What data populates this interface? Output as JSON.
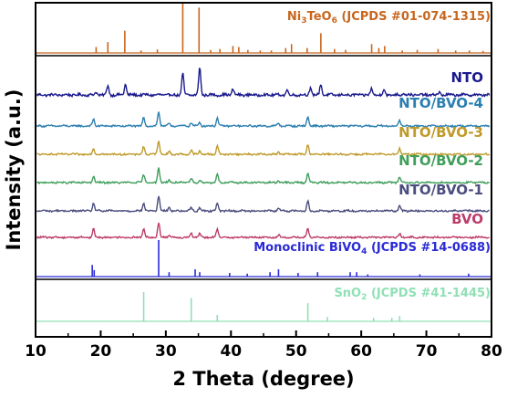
{
  "chart_data": {
    "type": "line",
    "xlabel": "2 Theta (degree)",
    "ylabel": "Intensity (a.u.)",
    "xlim": [
      10,
      80
    ],
    "xticks": [
      "10",
      "20",
      "30",
      "40",
      "50",
      "60",
      "70",
      "80"
    ],
    "grid": false,
    "reference_panels": [
      {
        "name": "Ni3TeO6 (JCPDS #01-074-1315)",
        "label_parts": [
          "Ni",
          "3",
          "TeO",
          "6",
          " (JCPDS #01-074-1315)"
        ],
        "color": "#c8661e",
        "sticks": [
          [
            19.3,
            0.12
          ],
          [
            21.1,
            0.22
          ],
          [
            23.7,
            0.45
          ],
          [
            26.2,
            0.05
          ],
          [
            28.7,
            0.07
          ],
          [
            32.6,
            1.0
          ],
          [
            35.1,
            0.92
          ],
          [
            36.9,
            0.06
          ],
          [
            38.3,
            0.08
          ],
          [
            40.3,
            0.14
          ],
          [
            41.2,
            0.12
          ],
          [
            42.6,
            0.06
          ],
          [
            44.5,
            0.05
          ],
          [
            46.2,
            0.05
          ],
          [
            48.4,
            0.1
          ],
          [
            49.3,
            0.18
          ],
          [
            51.7,
            0.1
          ],
          [
            53.8,
            0.4
          ],
          [
            55.9,
            0.08
          ],
          [
            57.6,
            0.06
          ],
          [
            61.6,
            0.18
          ],
          [
            62.7,
            0.1
          ],
          [
            63.6,
            0.14
          ],
          [
            66.3,
            0.05
          ],
          [
            68.6,
            0.06
          ],
          [
            71.8,
            0.08
          ],
          [
            74.5,
            0.05
          ],
          [
            76.6,
            0.05
          ],
          [
            78.7,
            0.04
          ]
        ]
      },
      {
        "name": "Monoclinic BiVO4 (JCPDS #14-0688)",
        "label_parts": [
          "Monoclinic BiVO",
          "4",
          " (JCPDS #14-0688)"
        ],
        "color": "#2a2ad6",
        "sticks": [
          [
            18.7,
            0.32
          ],
          [
            19.0,
            0.18
          ],
          [
            28.9,
            1.0
          ],
          [
            30.5,
            0.12
          ],
          [
            34.5,
            0.2
          ],
          [
            35.2,
            0.12
          ],
          [
            39.8,
            0.1
          ],
          [
            42.5,
            0.08
          ],
          [
            46.0,
            0.12
          ],
          [
            47.3,
            0.2
          ],
          [
            50.3,
            0.1
          ],
          [
            53.3,
            0.12
          ],
          [
            58.3,
            0.12
          ],
          [
            59.3,
            0.12
          ],
          [
            61.0,
            0.06
          ],
          [
            69.0,
            0.06
          ],
          [
            76.5,
            0.08
          ]
        ]
      },
      {
        "name": "SnO2 (JCPDS #41-1445)",
        "label_parts": [
          "SnO",
          "2",
          " (JCPDS #41-1445)"
        ],
        "color": "#8fe0b5",
        "sticks": [
          [
            26.6,
            1.0
          ],
          [
            33.9,
            0.8
          ],
          [
            37.9,
            0.22
          ],
          [
            51.8,
            0.62
          ],
          [
            54.8,
            0.15
          ],
          [
            61.9,
            0.12
          ],
          [
            64.7,
            0.12
          ],
          [
            65.9,
            0.18
          ]
        ]
      }
    ],
    "series": [
      {
        "name": "NTO",
        "color": "#1a1a8e",
        "noise": 0.035,
        "peaks": [
          [
            19.3,
            0.08
          ],
          [
            21.1,
            0.28
          ],
          [
            23.8,
            0.32
          ],
          [
            32.6,
            0.62
          ],
          [
            35.2,
            0.82
          ],
          [
            40.3,
            0.18
          ],
          [
            48.6,
            0.15
          ],
          [
            52.2,
            0.2
          ],
          [
            53.8,
            0.32
          ],
          [
            61.6,
            0.18
          ],
          [
            63.5,
            0.16
          ],
          [
            66.5,
            0.07
          ],
          [
            72.0,
            0.08
          ]
        ]
      },
      {
        "name": "NTO/BVO-4",
        "color": "#2b7fb0",
        "noise": 0.03,
        "peaks": [
          [
            18.9,
            0.25
          ],
          [
            26.6,
            0.3
          ],
          [
            28.9,
            0.52
          ],
          [
            30.5,
            0.1
          ],
          [
            33.9,
            0.12
          ],
          [
            35.2,
            0.14
          ],
          [
            37.9,
            0.3
          ],
          [
            47.3,
            0.1
          ],
          [
            51.8,
            0.35
          ],
          [
            65.9,
            0.22
          ]
        ]
      },
      {
        "name": "NTO/BVO-3",
        "color": "#bf9a2a",
        "noise": 0.03,
        "peaks": [
          [
            18.9,
            0.22
          ],
          [
            26.6,
            0.28
          ],
          [
            28.9,
            0.52
          ],
          [
            30.5,
            0.1
          ],
          [
            33.9,
            0.14
          ],
          [
            35.2,
            0.12
          ],
          [
            37.9,
            0.32
          ],
          [
            47.3,
            0.08
          ],
          [
            51.8,
            0.36
          ],
          [
            65.9,
            0.22
          ]
        ]
      },
      {
        "name": "NTO/BVO-2",
        "color": "#3f9e5a",
        "noise": 0.03,
        "peaks": [
          [
            18.9,
            0.22
          ],
          [
            26.6,
            0.3
          ],
          [
            28.9,
            0.55
          ],
          [
            30.5,
            0.1
          ],
          [
            33.9,
            0.14
          ],
          [
            35.2,
            0.1
          ],
          [
            37.9,
            0.32
          ],
          [
            47.3,
            0.08
          ],
          [
            51.8,
            0.36
          ],
          [
            65.9,
            0.22
          ]
        ]
      },
      {
        "name": "NTO/BVO-1",
        "color": "#4a4d7e",
        "noise": 0.03,
        "peaks": [
          [
            18.9,
            0.28
          ],
          [
            26.6,
            0.28
          ],
          [
            28.9,
            0.55
          ],
          [
            30.5,
            0.12
          ],
          [
            33.9,
            0.14
          ],
          [
            35.2,
            0.12
          ],
          [
            37.9,
            0.3
          ],
          [
            47.3,
            0.08
          ],
          [
            51.8,
            0.34
          ],
          [
            65.9,
            0.2
          ]
        ]
      },
      {
        "name": "BVO",
        "color": "#bd3c6a",
        "noise": 0.03,
        "peaks": [
          [
            18.9,
            0.3
          ],
          [
            26.6,
            0.32
          ],
          [
            28.9,
            0.55
          ],
          [
            30.5,
            0.1
          ],
          [
            33.9,
            0.16
          ],
          [
            35.2,
            0.12
          ],
          [
            37.9,
            0.3
          ],
          [
            47.3,
            0.08
          ],
          [
            51.8,
            0.3
          ],
          [
            65.9,
            0.12
          ]
        ]
      }
    ]
  }
}
